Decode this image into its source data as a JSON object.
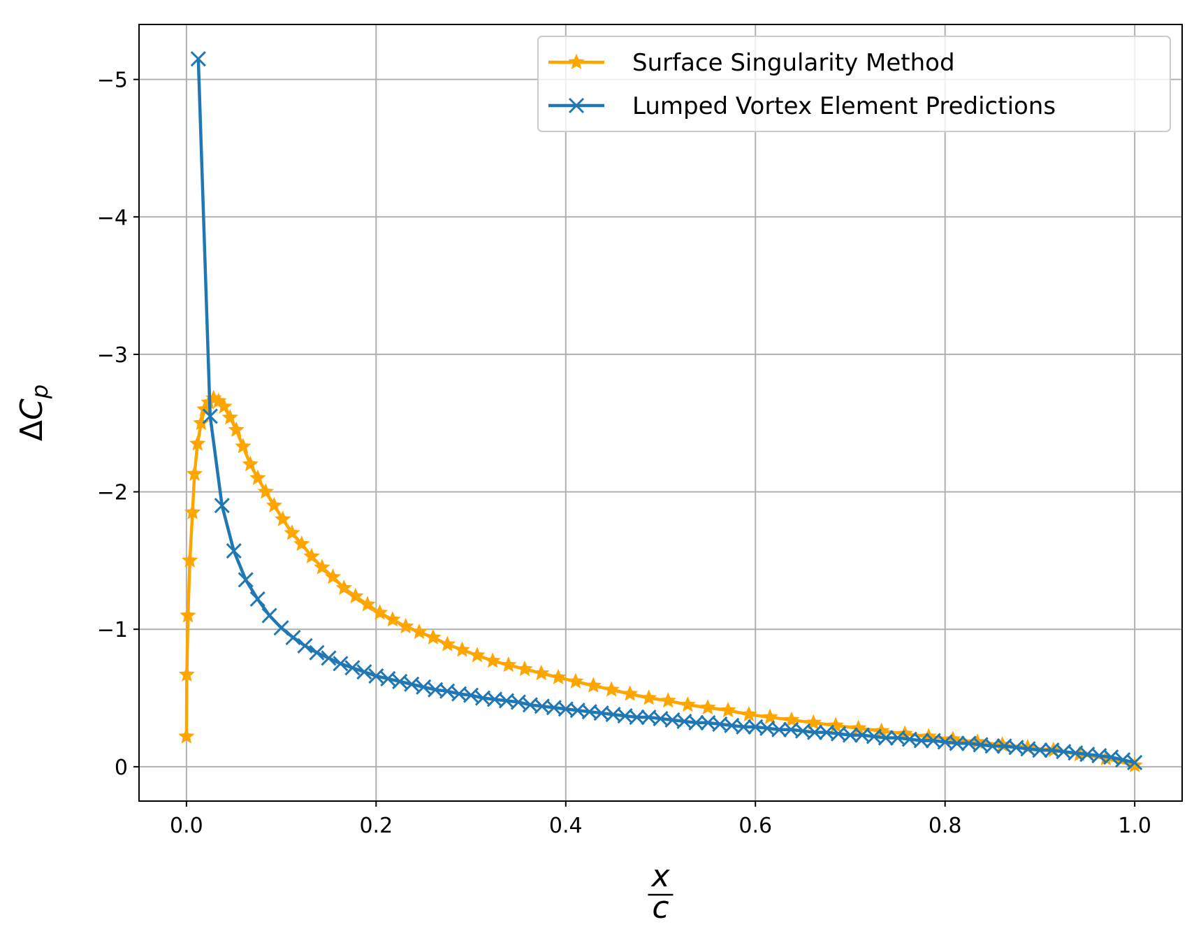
{
  "chart_data": {
    "type": "line",
    "title": "",
    "xlabel": {
      "numerator": "x",
      "denominator": "c"
    },
    "ylabel": {
      "prefix": "Δ",
      "main": "C",
      "subscript": "p"
    },
    "xlim": [
      -0.05,
      1.05
    ],
    "ylim": [
      0.25,
      -5.4
    ],
    "y_inverted": true,
    "grid": true,
    "legend_position": "top-right",
    "xticks": [
      0.0,
      0.2,
      0.4,
      0.6,
      0.8,
      1.0
    ],
    "xtick_labels": [
      "0.0",
      "0.2",
      "0.4",
      "0.6",
      "0.8",
      "1.0"
    ],
    "yticks": [
      -5,
      -4,
      -3,
      -2,
      -1,
      0
    ],
    "ytick_labels": [
      "−5",
      "−4",
      "−3",
      "−2",
      "−1",
      "0"
    ],
    "series": [
      {
        "name": "Surface Singularity Method",
        "color": "#ffa500",
        "marker": "star",
        "x": [
          0.0,
          0.0004,
          0.0016,
          0.0036,
          0.0064,
          0.0085,
          0.0117,
          0.0155,
          0.0192,
          0.0237,
          0.0286,
          0.0339,
          0.0397,
          0.046,
          0.0526,
          0.0597,
          0.0673,
          0.0752,
          0.0836,
          0.0925,
          0.1017,
          0.1114,
          0.1215,
          0.132,
          0.143,
          0.1544,
          0.1661,
          0.1783,
          0.1909,
          0.2039,
          0.2174,
          0.2312,
          0.2455,
          0.2601,
          0.2752,
          0.2907,
          0.3066,
          0.3229,
          0.3396,
          0.3567,
          0.3742,
          0.3921,
          0.4104,
          0.4291,
          0.4482,
          0.4677,
          0.4876,
          0.5079,
          0.5286,
          0.5497,
          0.5712,
          0.5931,
          0.6154,
          0.6381,
          0.6612,
          0.6847,
          0.7086,
          0.7329,
          0.7576,
          0.7827,
          0.8082,
          0.8341,
          0.8604,
          0.8871,
          0.9142,
          0.9417,
          0.9696,
          1.0
        ],
        "y": [
          -0.22,
          -0.67,
          -1.1,
          -1.5,
          -1.85,
          -2.13,
          -2.35,
          -2.5,
          -2.6,
          -2.65,
          -2.68,
          -2.66,
          -2.62,
          -2.54,
          -2.45,
          -2.33,
          -2.2,
          -2.1,
          -2.0,
          -1.9,
          -1.8,
          -1.7,
          -1.62,
          -1.53,
          -1.45,
          -1.38,
          -1.3,
          -1.24,
          -1.18,
          -1.12,
          -1.07,
          -1.02,
          -0.98,
          -0.94,
          -0.89,
          -0.85,
          -0.81,
          -0.77,
          -0.74,
          -0.71,
          -0.68,
          -0.65,
          -0.62,
          -0.59,
          -0.56,
          -0.53,
          -0.5,
          -0.48,
          -0.45,
          -0.43,
          -0.41,
          -0.38,
          -0.36,
          -0.34,
          -0.32,
          -0.3,
          -0.28,
          -0.26,
          -0.24,
          -0.22,
          -0.2,
          -0.18,
          -0.16,
          -0.14,
          -0.12,
          -0.09,
          -0.06,
          -0.01
        ]
      },
      {
        "name": "Lumped Vortex Element Predictions",
        "color": "#1f77b4",
        "marker": "x",
        "x": [
          0.0125,
          0.025,
          0.0375,
          0.05,
          0.0625,
          0.075,
          0.0875,
          0.1,
          0.1125,
          0.125,
          0.1375,
          0.15,
          0.1625,
          0.175,
          0.1875,
          0.2,
          0.2125,
          0.225,
          0.2375,
          0.25,
          0.2625,
          0.275,
          0.2875,
          0.3,
          0.3125,
          0.325,
          0.3375,
          0.35,
          0.3625,
          0.375,
          0.3875,
          0.4,
          0.4125,
          0.425,
          0.4375,
          0.45,
          0.4625,
          0.475,
          0.4875,
          0.5,
          0.5125,
          0.525,
          0.5375,
          0.55,
          0.5625,
          0.575,
          0.5875,
          0.6,
          0.6125,
          0.625,
          0.6375,
          0.65,
          0.6625,
          0.675,
          0.6875,
          0.7,
          0.7125,
          0.725,
          0.7375,
          0.75,
          0.7625,
          0.775,
          0.7875,
          0.8,
          0.8125,
          0.825,
          0.8375,
          0.85,
          0.8625,
          0.875,
          0.8875,
          0.9,
          0.9125,
          0.925,
          0.9375,
          0.95,
          0.9625,
          0.975,
          0.9875,
          1.0
        ],
        "y": [
          -5.15,
          -2.55,
          -1.9,
          -1.57,
          -1.36,
          -1.22,
          -1.1,
          -1.01,
          -0.94,
          -0.88,
          -0.83,
          -0.79,
          -0.75,
          -0.72,
          -0.69,
          -0.66,
          -0.64,
          -0.62,
          -0.6,
          -0.58,
          -0.56,
          -0.55,
          -0.53,
          -0.52,
          -0.5,
          -0.49,
          -0.48,
          -0.47,
          -0.45,
          -0.44,
          -0.43,
          -0.42,
          -0.41,
          -0.4,
          -0.39,
          -0.38,
          -0.37,
          -0.36,
          -0.36,
          -0.35,
          -0.34,
          -0.33,
          -0.32,
          -0.32,
          -0.31,
          -0.3,
          -0.29,
          -0.29,
          -0.28,
          -0.27,
          -0.27,
          -0.26,
          -0.25,
          -0.25,
          -0.24,
          -0.23,
          -0.23,
          -0.22,
          -0.21,
          -0.21,
          -0.2,
          -0.19,
          -0.19,
          -0.18,
          -0.17,
          -0.17,
          -0.16,
          -0.15,
          -0.15,
          -0.14,
          -0.13,
          -0.12,
          -0.12,
          -0.11,
          -0.1,
          -0.09,
          -0.08,
          -0.07,
          -0.05,
          -0.03
        ]
      }
    ]
  }
}
